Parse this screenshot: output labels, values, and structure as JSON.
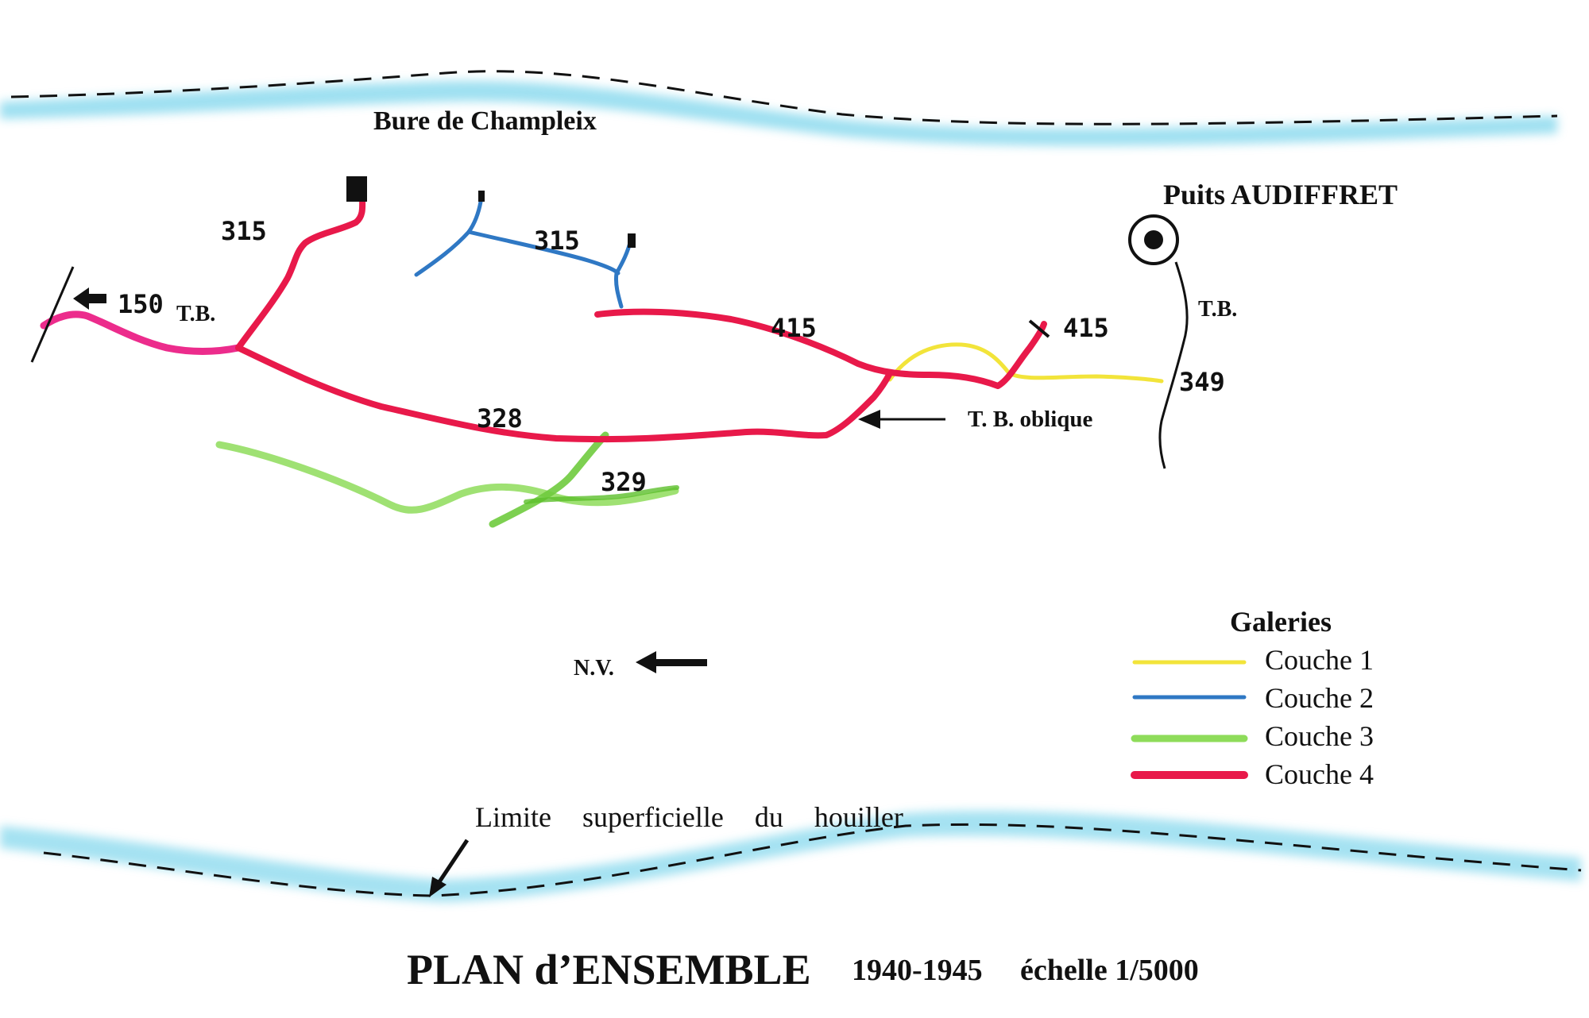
{
  "map": {
    "title": "PLAN d’ENSEMBLE",
    "subtitle_years": "1940-1945",
    "subtitle_scale": "échelle 1/5000",
    "shaft_top_left": "Bure de Champleix",
    "shaft_right": "Puits AUDIFFRET",
    "boundary_label": "Limite superficielle du houiller",
    "level_labels": {
      "l150": "150",
      "l315_red": "315",
      "l315_blue": "315",
      "l415_mid": "415",
      "l415_right": "415",
      "l328": "328",
      "l329": "329",
      "l349": "349"
    },
    "tb_left": "T.B.",
    "tb_right": "T.B.",
    "tb_oblique": "T. B. oblique",
    "nv": "N.V."
  },
  "legend": {
    "title": "Galeries",
    "items": [
      {
        "label": "Couche 1",
        "color": "#f2e43a"
      },
      {
        "label": "Couche 2",
        "color": "#2f78c4"
      },
      {
        "label": "Couche 3",
        "color": "#8edc5a"
      },
      {
        "label": "Couche 4",
        "color": "#e8194a"
      }
    ]
  },
  "colors": {
    "boundary_wash": "#7fd6ec",
    "couche1": "#f2e43a",
    "couche2": "#2f78c4",
    "couche3": "#8edc5a",
    "couche4": "#e8194a",
    "couche4_pink": "#ec2c8c"
  },
  "icons": {
    "shaft_symbol": "target-circle-icon",
    "direction_arrow": "arrow-left-icon"
  }
}
